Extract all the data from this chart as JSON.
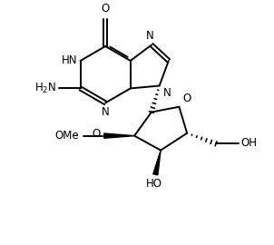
{
  "bg_color": "#ffffff",
  "line_color": "#000000",
  "line_width": 1.4,
  "font_size": 8.5,
  "figsize": [
    3.02,
    2.7
  ],
  "dpi": 100,
  "xlim": [
    0,
    10
  ],
  "ylim": [
    0,
    9
  ]
}
